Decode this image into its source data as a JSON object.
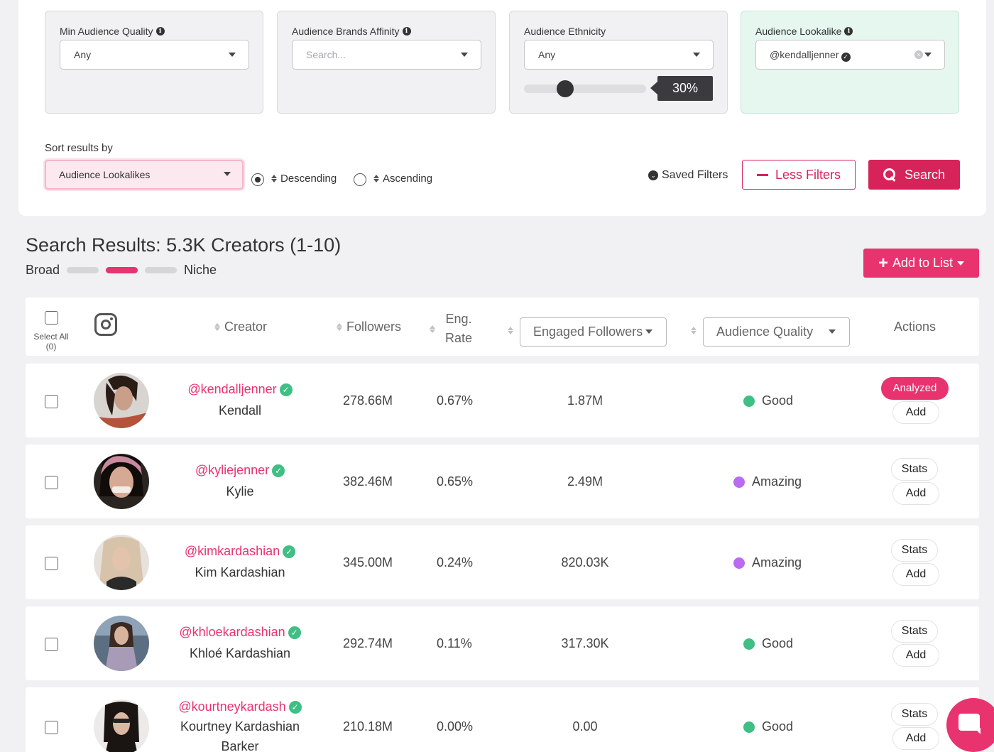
{
  "filters": {
    "min_audience_quality": {
      "label": "Min Audience Quality",
      "value": "Any"
    },
    "brands_affinity": {
      "label": "Audience Brands Affinity",
      "placeholder": "Search..."
    },
    "ethnicity": {
      "label": "Audience Ethnicity",
      "value": "Any",
      "slider_value": "30%",
      "slider_fraction": 0.3
    },
    "lookalike": {
      "label": "Audience Lookalike",
      "value": "@kendalljenner"
    }
  },
  "sort": {
    "label": "Sort results by",
    "value": "Audience Lookalikes",
    "descending": "Descending",
    "ascending": "Ascending",
    "selected": "Descending"
  },
  "actions": {
    "saved_filters": "Saved Filters",
    "less_filters": "Less Filters",
    "search": "Search",
    "add_to_list": "Add to List"
  },
  "results": {
    "title": "Search Results: 5.3K Creators (1-10)",
    "scale_left": "Broad",
    "scale_right": "Niche",
    "scale_active_index": 1
  },
  "table": {
    "select_all": "Select All",
    "select_count": "(0)",
    "headers": {
      "creator": "Creator",
      "followers": "Followers",
      "eng_rate": "Eng.",
      "eng_rate_2": "Rate",
      "engaged_followers": "Engaged Followers",
      "audience_quality": "Audience Quality",
      "actions": "Actions"
    },
    "rows": [
      {
        "handle": "@kendalljenner",
        "name": "Kendall",
        "followers": "278.66M",
        "eng_rate": "0.67%",
        "engaged": "1.87M",
        "quality": "Good",
        "quality_color": "#3fbf84",
        "primary_action": "Analyzed",
        "secondary_action": "Add"
      },
      {
        "handle": "@kyliejenner",
        "name": "Kylie",
        "followers": "382.46M",
        "eng_rate": "0.65%",
        "engaged": "2.49M",
        "quality": "Amazing",
        "quality_color": "#b96cf0",
        "primary_action": "Stats",
        "secondary_action": "Add"
      },
      {
        "handle": "@kimkardashian",
        "name": "Kim Kardashian",
        "followers": "345.00M",
        "eng_rate": "0.24%",
        "engaged": "820.03K",
        "quality": "Amazing",
        "quality_color": "#b96cf0",
        "primary_action": "Stats",
        "secondary_action": "Add"
      },
      {
        "handle": "@khloekardashian",
        "name": "Khloé Kardashian",
        "followers": "292.74M",
        "eng_rate": "0.11%",
        "engaged": "317.30K",
        "quality": "Good",
        "quality_color": "#3fbf84",
        "primary_action": "Stats",
        "secondary_action": "Add"
      },
      {
        "handle": "@kourtneykardash",
        "name": "Kourtney Kardashian",
        "name_2": "Barker",
        "followers": "210.18M",
        "eng_rate": "0.00%",
        "engaged": "0.00",
        "quality": "Good",
        "quality_color": "#3fbf84",
        "primary_action": "Stats",
        "secondary_action": "Add"
      }
    ]
  },
  "colors": {
    "accent": "#e8336f",
    "search_red": "#d6245a",
    "mint_card": "#e5f7ef"
  },
  "icons": {
    "chat": "chat-bubble-icon",
    "instagram": "instagram-icon",
    "verified": "verified-check-icon"
  }
}
